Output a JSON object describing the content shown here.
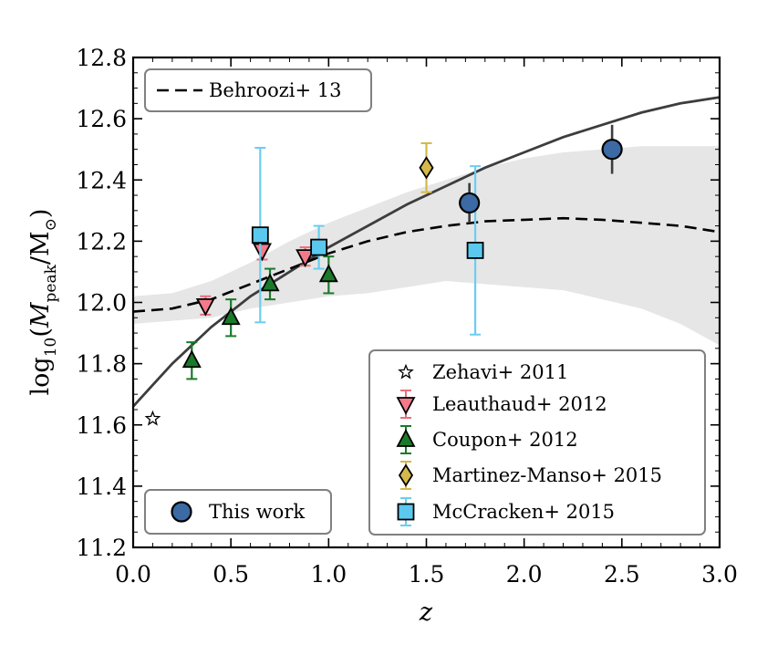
{
  "chart_data": {
    "type": "scatter",
    "xlabel": "z",
    "ylabel": "log10(Mpeak/M⊙)",
    "ylabel_parts": {
      "func": "log",
      "sub": "10",
      "open": "(",
      "M": "M",
      "peak": "peak",
      "slash": "/M",
      "sun": "⊙",
      "close": ")"
    },
    "xlim": [
      0.0,
      3.0
    ],
    "ylim": [
      11.2,
      12.8
    ],
    "xticks": [
      "0.0",
      "0.5",
      "1.0",
      "1.5",
      "2.0",
      "2.5",
      "3.0"
    ],
    "yticks": [
      "11.2",
      "11.4",
      "11.6",
      "11.8",
      "12.0",
      "12.2",
      "12.4",
      "12.6",
      "12.8"
    ],
    "grid": false,
    "curves": [
      {
        "name": "This work fit",
        "style": "solid",
        "color": "#3d3d3d",
        "x": [
          0.0,
          0.1,
          0.2,
          0.3,
          0.4,
          0.5,
          0.6,
          0.7,
          0.8,
          0.9,
          1.0,
          1.2,
          1.4,
          1.6,
          1.8,
          2.0,
          2.2,
          2.4,
          2.6,
          2.8,
          3.0
        ],
        "y": [
          11.66,
          11.73,
          11.8,
          11.86,
          11.92,
          11.97,
          12.02,
          12.06,
          12.1,
          12.14,
          12.18,
          12.25,
          12.32,
          12.38,
          12.44,
          12.49,
          12.54,
          12.58,
          12.62,
          12.65,
          12.67
        ]
      },
      {
        "name": "Behroozi+ 13",
        "style": "dashed",
        "color": "#000000",
        "x": [
          0.0,
          0.2,
          0.4,
          0.6,
          0.8,
          1.0,
          1.2,
          1.4,
          1.6,
          1.8,
          2.0,
          2.2,
          2.4,
          2.6,
          2.8,
          3.0
        ],
        "y": [
          11.97,
          11.98,
          12.01,
          12.06,
          12.11,
          12.16,
          12.2,
          12.23,
          12.25,
          12.265,
          12.27,
          12.275,
          12.27,
          12.26,
          12.25,
          12.23
        ]
      }
    ],
    "band": {
      "name": "Behroozi+ 13 uncertainty",
      "color": "#e6e6e6",
      "x": [
        0.0,
        0.2,
        0.4,
        0.6,
        0.8,
        1.0,
        1.2,
        1.4,
        1.6,
        1.8,
        2.0,
        2.2,
        2.4,
        2.6,
        2.8,
        3.0
      ],
      "lo": [
        11.93,
        11.94,
        11.95,
        11.98,
        12.0,
        12.02,
        12.03,
        12.05,
        12.07,
        12.06,
        12.05,
        12.04,
        12.01,
        11.98,
        11.93,
        11.86
      ],
      "hi": [
        12.02,
        12.03,
        12.07,
        12.13,
        12.2,
        12.26,
        12.31,
        12.36,
        12.4,
        12.44,
        12.47,
        12.49,
        12.5,
        12.51,
        12.51,
        12.51
      ]
    },
    "series": [
      {
        "name": "Zehavi+ 2011",
        "marker": "star",
        "color": "#ffffff",
        "edge": "#000000",
        "errcolor": "#000000",
        "points": [
          {
            "x": 0.1,
            "y": 11.62,
            "yerr": 0.0
          }
        ]
      },
      {
        "name": "Leauthaud+ 2012",
        "marker": "triangle-down",
        "color": "#f47a8a",
        "edge": "#000000",
        "errcolor": "#e8707c",
        "points": [
          {
            "x": 0.37,
            "y": 11.99,
            "yerr": 0.03
          },
          {
            "x": 0.66,
            "y": 12.17,
            "yerr": 0.03
          },
          {
            "x": 0.88,
            "y": 12.15,
            "yerr": 0.03
          }
        ]
      },
      {
        "name": "Coupon+ 2012",
        "marker": "triangle-up",
        "color": "#1a7a2a",
        "edge": "#000000",
        "errcolor": "#1a7a2a",
        "points": [
          {
            "x": 0.3,
            "y": 11.81,
            "yerr": 0.06
          },
          {
            "x": 0.5,
            "y": 11.95,
            "yerr": 0.06
          },
          {
            "x": 0.7,
            "y": 12.06,
            "yerr": 0.05
          },
          {
            "x": 1.0,
            "y": 12.09,
            "yerr": 0.06
          }
        ]
      },
      {
        "name": "Martinez-Manso+ 2015",
        "marker": "diamond",
        "color": "#d4b94a",
        "edge": "#000000",
        "errcolor": "#d4b94a",
        "points": [
          {
            "x": 1.5,
            "y": 12.44,
            "yerr": 0.08
          }
        ]
      },
      {
        "name": "McCracken+ 2015",
        "marker": "square",
        "color": "#5bc8ef",
        "edge": "#000000",
        "errcolor": "#6bcdf0",
        "points": [
          {
            "x": 0.65,
            "y": 12.22,
            "yerr": 0.285
          },
          {
            "x": 0.95,
            "y": 12.18,
            "yerr": 0.07
          },
          {
            "x": 1.75,
            "y": 12.17,
            "yerr": 0.275
          }
        ]
      },
      {
        "name": "This work",
        "marker": "circle",
        "color": "#3b6aa5",
        "edge": "#000000",
        "errcolor": "#3d3d3d",
        "points": [
          {
            "x": 1.72,
            "y": 12.325,
            "yerr": 0.065
          },
          {
            "x": 2.45,
            "y": 12.5,
            "yerr": 0.08
          }
        ]
      }
    ],
    "legends": [
      {
        "placement": "top-left",
        "entries": [
          "Behroozi+ 13"
        ]
      },
      {
        "placement": "bottom-right",
        "entries": [
          "Zehavi+ 2011",
          "Leauthaud+ 2012",
          "Coupon+ 2012",
          "Martinez-Manso+ 2015",
          "McCracken+ 2015"
        ]
      },
      {
        "placement": "bottom-left",
        "entries": [
          "This work"
        ]
      }
    ]
  }
}
